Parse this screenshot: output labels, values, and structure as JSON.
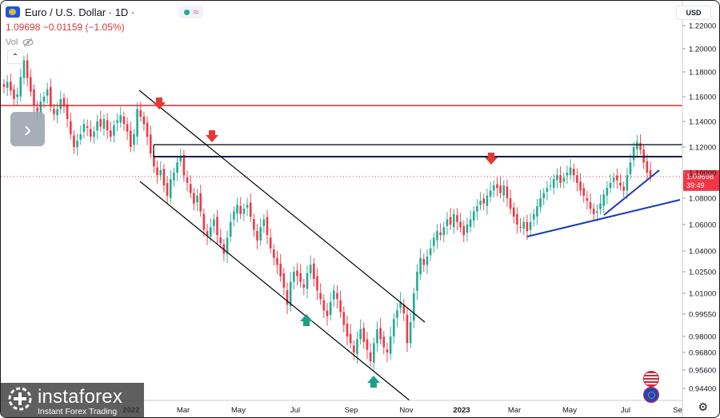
{
  "header": {
    "symbol_title": "Euro / U.S. Dollar · 1D ·",
    "price_change": "1.09698  −0.01159 (−1.05%)",
    "volume_label": "Vol"
  },
  "scale_currency": "USD",
  "branding": {
    "name": "instaforex",
    "tagline": "Instant Forex Trading"
  },
  "icons": [
    "euro-flag-icon",
    "market-status-dot-icon",
    "wave-icon",
    "hide-eye-icon",
    "collapse-chevron-icon",
    "next-arrow-icon",
    "settings-gear-icon",
    "us-flag-icon",
    "eu-flag-icon",
    "instaforex-logo-icon"
  ],
  "colors": {
    "up": "#22ab94",
    "down": "#f23645",
    "resistance": "#d32f2f",
    "channel": "#000000",
    "support": "#1a3bb3"
  },
  "chart_data": {
    "type": "candlestick",
    "x_tick_labels": [
      "2022",
      "Mar",
      "May",
      "Jul",
      "Sep",
      "Nov",
      "2023",
      "Mar",
      "May",
      "Jul",
      "Se"
    ],
    "y_ticks": [
      0.944,
      0.956,
      0.968,
      0.98,
      0.9955,
      1.01,
      1.025,
      1.04,
      1.06,
      1.08,
      1.1,
      1.12,
      1.14,
      1.16,
      1.18,
      1.2,
      1.22
    ],
    "y_tick_labels": [
      "0.94400",
      "0.95600",
      "0.96800",
      "0.98000",
      "0.99550",
      "1.01000",
      "1.02500",
      "1.04000",
      "1.06000",
      "1.08000",
      "1.10000",
      "1.12000",
      "1.14000",
      "1.16000",
      "1.18000",
      "1.20000",
      "1.22000"
    ],
    "last_price": "1.09698",
    "countdown": "39:49",
    "series_close": [
      1.168,
      1.172,
      1.165,
      1.158,
      1.162,
      1.176,
      1.19,
      1.175,
      1.164,
      1.153,
      1.148,
      1.156,
      1.16,
      1.166,
      1.152,
      1.146,
      1.15,
      1.158,
      1.152,
      1.142,
      1.13,
      1.12,
      1.125,
      1.13,
      1.138,
      1.135,
      1.128,
      1.132,
      1.14,
      1.136,
      1.142,
      1.133,
      1.128,
      1.137,
      1.141,
      1.145,
      1.138,
      1.132,
      1.12,
      1.13,
      1.15,
      1.144,
      1.138,
      1.128,
      1.115,
      1.105,
      1.098,
      1.102,
      1.09,
      1.082,
      1.095,
      1.1,
      1.108,
      1.112,
      1.098,
      1.092,
      1.084,
      1.076,
      1.082,
      1.07,
      1.056,
      1.051,
      1.058,
      1.064,
      1.052,
      1.046,
      1.038,
      1.05,
      1.062,
      1.07,
      1.075,
      1.068,
      1.072,
      1.075,
      1.066,
      1.056,
      1.048,
      1.058,
      1.064,
      1.052,
      1.042,
      1.035,
      1.03,
      1.022,
      1.014,
      1.002,
      1.018,
      1.025,
      1.022,
      1.018,
      1.014,
      1.024,
      1.03,
      1.02,
      1.012,
      1.006,
      0.998,
      0.994,
      1.004,
      1.012,
      1.006,
      0.997,
      0.988,
      0.98,
      0.975,
      0.968,
      0.978,
      0.985,
      0.976,
      0.97,
      0.962,
      0.975,
      0.985,
      0.978,
      0.972,
      0.968,
      0.98,
      0.992,
      0.998,
      1.004,
      0.996,
      0.975,
      0.99,
      1.01,
      1.025,
      1.035,
      1.03,
      1.036,
      1.042,
      1.05,
      1.055,
      1.052,
      1.058,
      1.064,
      1.06,
      1.068,
      1.062,
      1.058,
      1.052,
      1.06,
      1.064,
      1.07,
      1.074,
      1.078,
      1.076,
      1.082,
      1.086,
      1.09,
      1.088,
      1.084,
      1.09,
      1.08,
      1.072,
      1.066,
      1.06,
      1.058,
      1.062,
      1.055,
      1.062,
      1.068,
      1.074,
      1.08,
      1.084,
      1.088,
      1.09,
      1.095,
      1.098,
      1.092,
      1.096,
      1.1,
      1.104,
      1.098,
      1.092,
      1.086,
      1.082,
      1.078,
      1.072,
      1.068,
      1.07,
      1.076,
      1.083,
      1.088,
      1.092,
      1.096,
      1.094,
      1.09,
      1.086,
      1.098,
      1.108,
      1.12,
      1.124,
      1.118,
      1.108,
      1.1,
      1.097
    ],
    "horizontal_levels": [
      1.152,
      1.121,
      1.111
    ],
    "title": "",
    "xlabel": "",
    "ylabel": ""
  }
}
